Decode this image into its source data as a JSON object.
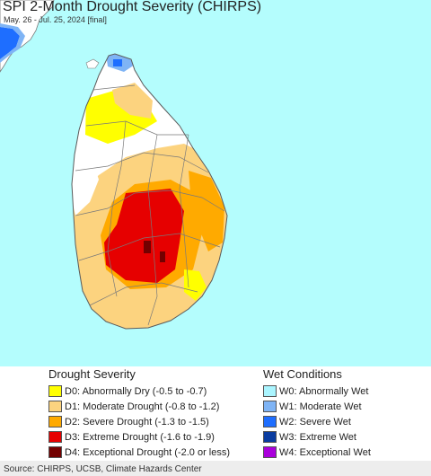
{
  "title": "SPI 2-Month Drought Severity (CHIRPS)",
  "subtitle": "May. 26 - Jul. 25, 2024 [final]",
  "map": {
    "region": "Sri Lanka",
    "colors": {
      "ocean": "#b4fdfd",
      "land_none": "#ffffff",
      "boundary": "#7a7a7a"
    }
  },
  "legend": {
    "drought": {
      "heading": "Drought Severity",
      "items": [
        {
          "label": "D0: Abnormally Dry (-0.5 to -0.7)",
          "color": "#ffff00"
        },
        {
          "label": "D1: Moderate Drought (-0.8 to -1.2)",
          "color": "#fcd37f"
        },
        {
          "label": "D2: Severe Drought (-1.3 to -1.5)",
          "color": "#ffaa00"
        },
        {
          "label": "D3: Extreme Drought (-1.6 to -1.9)",
          "color": "#e60000"
        },
        {
          "label": "D4: Exceptional Drought (-2.0 or less)",
          "color": "#730000"
        }
      ]
    },
    "wet": {
      "heading": "Wet Conditions",
      "items": [
        {
          "label": "W0: Abnormally Wet",
          "color": "#aaf5ff"
        },
        {
          "label": "W1: Moderate Wet",
          "color": "#7fb4f5"
        },
        {
          "label": "W2: Severe Wet",
          "color": "#1e6eff"
        },
        {
          "label": "W3: Extreme Wet",
          "color": "#0a3ca0"
        },
        {
          "label": "W4: Exceptional Wet",
          "color": "#aa00dc"
        }
      ]
    }
  },
  "footer": "Source: CHIRPS, UCSB, Climate Hazards Center"
}
